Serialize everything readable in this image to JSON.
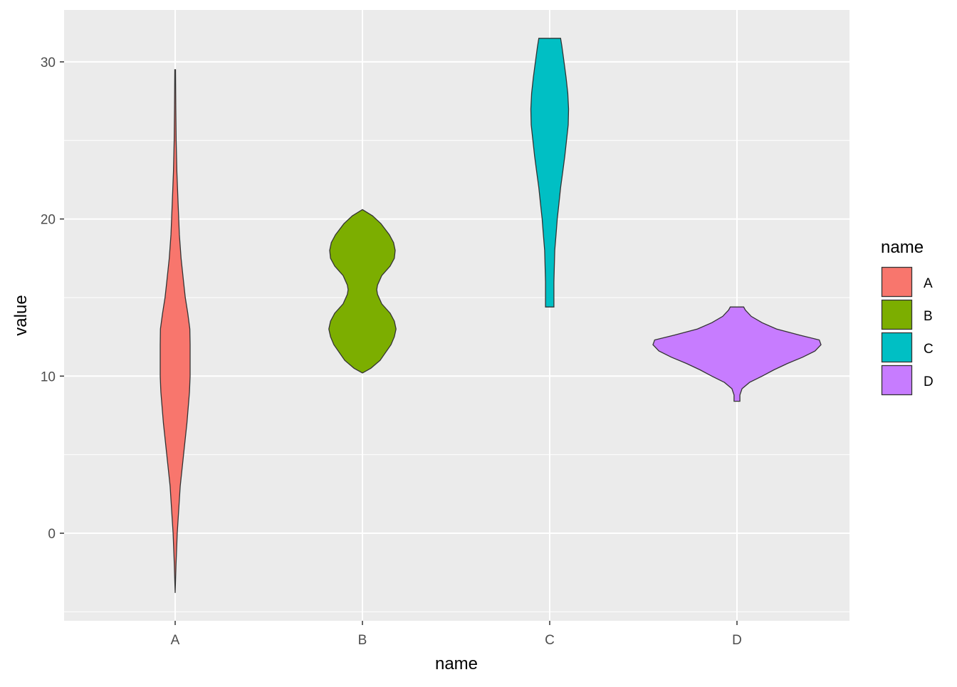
{
  "chart_data": {
    "type": "violin",
    "title": "",
    "xlabel": "name",
    "ylabel": "value",
    "categories": [
      "A",
      "B",
      "C",
      "D"
    ],
    "ylim": [
      -5.6,
      33.3
    ],
    "y_ticks": [
      0,
      10,
      20,
      30
    ],
    "y_tick_labels": [
      "0",
      "10",
      "20",
      "30"
    ],
    "grid": true,
    "legend": {
      "title": "name",
      "position": "right",
      "entries": [
        "A",
        "B",
        "C",
        "D"
      ]
    },
    "colors": {
      "A": "#F8766D",
      "B": "#7CAE00",
      "C": "#00BFC4",
      "D": "#C77CFF"
    },
    "series": [
      {
        "name": "A",
        "min": -3.8,
        "max": 29.5,
        "profile": [
          [
            -3.8,
            0
          ],
          [
            -2,
            0.01
          ],
          [
            0,
            0.025
          ],
          [
            3,
            0.06
          ],
          [
            5,
            0.1
          ],
          [
            7,
            0.14
          ],
          [
            9,
            0.17
          ],
          [
            10,
            0.178
          ],
          [
            12,
            0.178
          ],
          [
            13,
            0.175
          ],
          [
            14,
            0.15
          ],
          [
            15,
            0.12
          ],
          [
            16,
            0.1
          ],
          [
            17.5,
            0.07
          ],
          [
            19,
            0.05
          ],
          [
            21,
            0.035
          ],
          [
            23,
            0.02
          ],
          [
            25,
            0.012
          ],
          [
            27,
            0.008
          ],
          [
            29.5,
            0.004
          ]
        ]
      },
      {
        "name": "B",
        "min": 10.2,
        "max": 20.6,
        "profile": [
          [
            10.2,
            0
          ],
          [
            10.5,
            0.1
          ],
          [
            11,
            0.21
          ],
          [
            12,
            0.34
          ],
          [
            12.5,
            0.38
          ],
          [
            13,
            0.4
          ],
          [
            13.5,
            0.38
          ],
          [
            14,
            0.33
          ],
          [
            14.6,
            0.23
          ],
          [
            15.2,
            0.18
          ],
          [
            15.5,
            0.17
          ],
          [
            15.8,
            0.18
          ],
          [
            16.4,
            0.23
          ],
          [
            17,
            0.33
          ],
          [
            17.5,
            0.38
          ],
          [
            18,
            0.39
          ],
          [
            18.5,
            0.37
          ],
          [
            19,
            0.32
          ],
          [
            19.7,
            0.22
          ],
          [
            20.2,
            0.12
          ],
          [
            20.6,
            0
          ]
        ]
      },
      {
        "name": "C",
        "min": 14.4,
        "max": 31.5,
        "profile": [
          [
            14.4,
            0.05
          ],
          [
            16,
            0.05
          ],
          [
            17,
            0.055
          ],
          [
            18,
            0.06
          ],
          [
            19,
            0.075
          ],
          [
            20,
            0.09
          ],
          [
            21,
            0.11
          ],
          [
            22,
            0.13
          ],
          [
            23,
            0.155
          ],
          [
            24,
            0.18
          ],
          [
            25,
            0.2
          ],
          [
            26,
            0.22
          ],
          [
            27,
            0.225
          ],
          [
            28,
            0.215
          ],
          [
            29,
            0.195
          ],
          [
            30,
            0.17
          ],
          [
            31,
            0.145
          ],
          [
            31.5,
            0.13
          ]
        ]
      },
      {
        "name": "D",
        "min": 8.4,
        "max": 14.4,
        "profile": [
          [
            8.4,
            0.035
          ],
          [
            8.8,
            0.035
          ],
          [
            9.2,
            0.06
          ],
          [
            9.6,
            0.15
          ],
          [
            10,
            0.3
          ],
          [
            10.4,
            0.44
          ],
          [
            10.8,
            0.6
          ],
          [
            11.2,
            0.78
          ],
          [
            11.6,
            0.93
          ],
          [
            12,
            1.0
          ],
          [
            12.3,
            0.98
          ],
          [
            12.6,
            0.75
          ],
          [
            13,
            0.47
          ],
          [
            13.4,
            0.3
          ],
          [
            13.8,
            0.17
          ],
          [
            14.2,
            0.1
          ],
          [
            14.4,
            0.08
          ]
        ]
      }
    ]
  }
}
